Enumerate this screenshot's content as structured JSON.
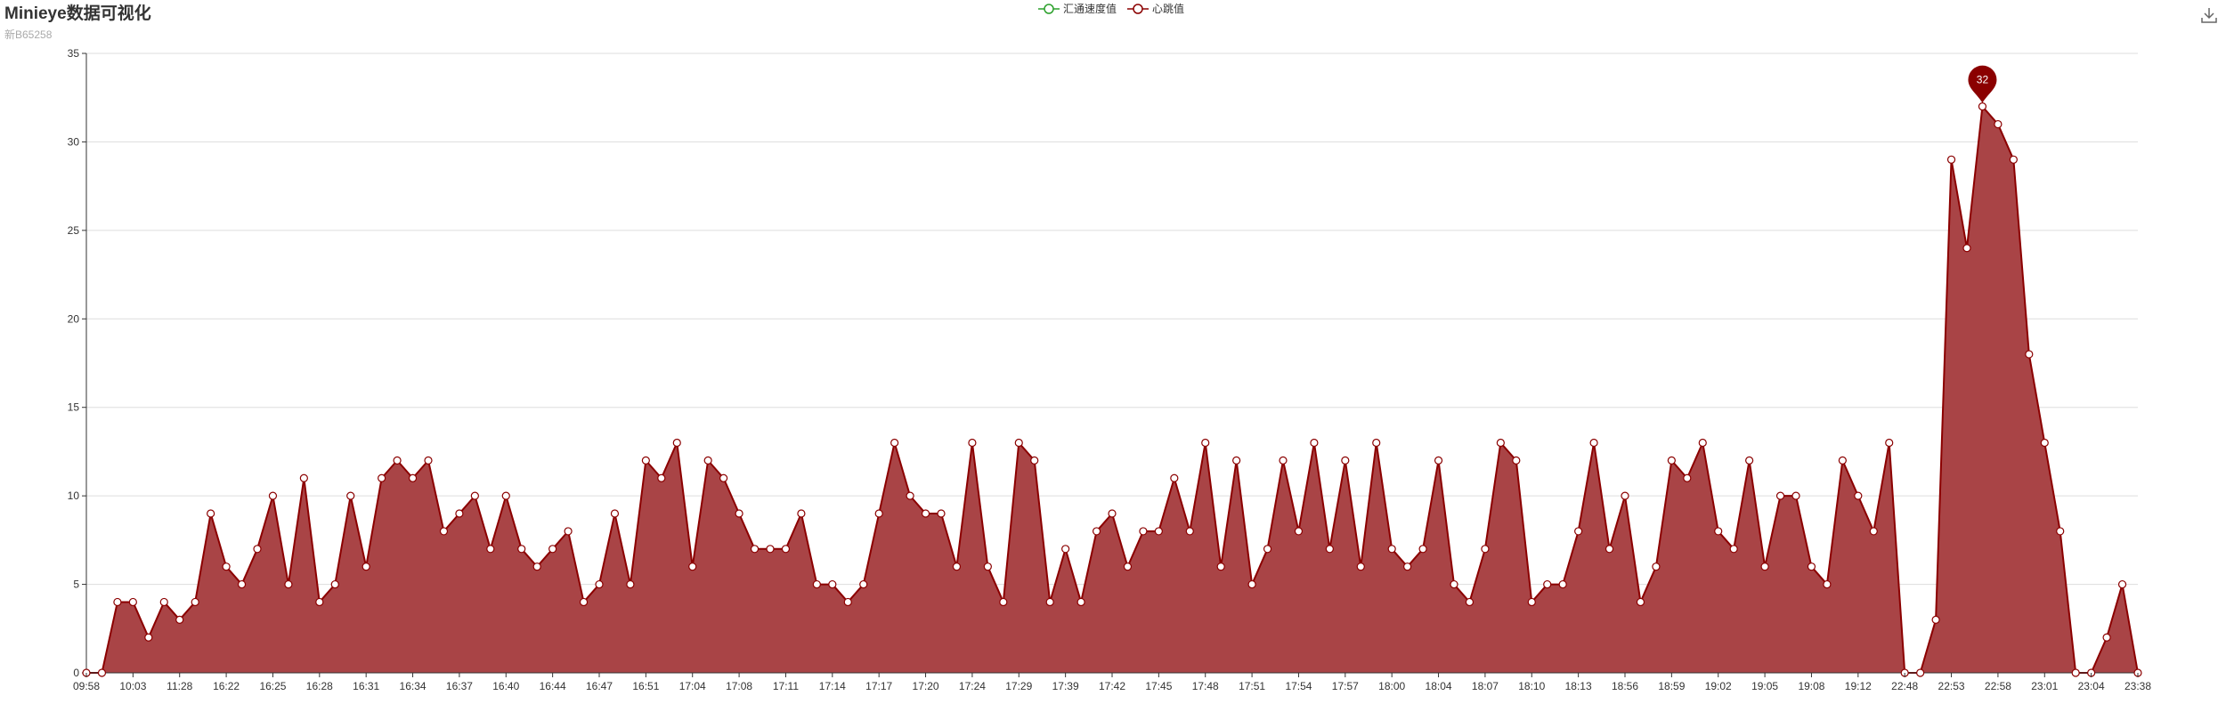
{
  "title": "Minieye数据可视化",
  "subtitle": "新B65258",
  "legend": [
    {
      "name": "汇通速度值",
      "color": "#2ca02c"
    },
    {
      "name": "心跳值",
      "color": "#8b0000"
    }
  ],
  "toolbox": {
    "icon": "download-icon"
  },
  "colors": {
    "area": "#a94446",
    "line": "#8b0000",
    "grid": "#dddddd",
    "axis": "#333333"
  },
  "chart_data": {
    "type": "area",
    "title": "",
    "xlabel": "",
    "ylabel": "",
    "ylim": [
      0,
      35
    ],
    "yticks": [
      0,
      5,
      10,
      15,
      20,
      25,
      30,
      35
    ],
    "xtick_labels": [
      "09:58",
      "10:03",
      "11:28",
      "16:22",
      "16:25",
      "16:28",
      "16:31",
      "16:34",
      "16:37",
      "16:40",
      "16:44",
      "16:47",
      "16:51",
      "17:04",
      "17:08",
      "17:11",
      "17:14",
      "17:17",
      "17:20",
      "17:24",
      "17:29",
      "17:39",
      "17:42",
      "17:45",
      "17:48",
      "17:51",
      "17:54",
      "17:57",
      "18:00",
      "18:04",
      "18:07",
      "18:10",
      "18:13",
      "18:56",
      "18:59",
      "19:02",
      "19:05",
      "19:08",
      "19:12",
      "22:48",
      "22:53",
      "22:58",
      "23:01",
      "23:04",
      "23:38"
    ],
    "series": [
      {
        "name": "心跳值",
        "values": [
          0,
          0,
          4,
          4,
          2,
          4,
          3,
          4,
          9,
          6,
          5,
          7,
          10,
          5,
          11,
          4,
          5,
          10,
          6,
          11,
          12,
          11,
          12,
          8,
          9,
          10,
          7,
          10,
          7,
          6,
          7,
          8,
          4,
          5,
          9,
          5,
          12,
          11,
          13,
          6,
          12,
          11,
          9,
          7,
          7,
          7,
          9,
          5,
          5,
          4,
          5,
          9,
          13,
          10,
          9,
          9,
          6,
          13,
          6,
          4,
          13,
          12,
          4,
          7,
          4,
          8,
          9,
          6,
          8,
          8,
          11,
          8,
          13,
          6,
          12,
          5,
          7,
          12,
          8,
          13,
          7,
          12,
          6,
          13,
          7,
          6,
          7,
          12,
          5,
          4,
          7,
          13,
          12,
          4,
          5,
          5,
          8,
          13,
          7,
          10,
          4,
          6,
          12,
          11,
          13,
          8,
          7,
          12,
          6,
          10,
          10,
          6,
          5,
          12,
          10,
          8,
          13,
          0,
          0,
          3,
          29,
          24,
          32,
          31,
          29,
          18,
          13,
          8,
          0,
          0,
          2,
          5,
          0
        ]
      },
      {
        "name": "汇通速度值",
        "values": []
      }
    ],
    "mark_point": {
      "label": "32",
      "type": "max"
    },
    "grid": true,
    "legend_position": "top-center"
  }
}
